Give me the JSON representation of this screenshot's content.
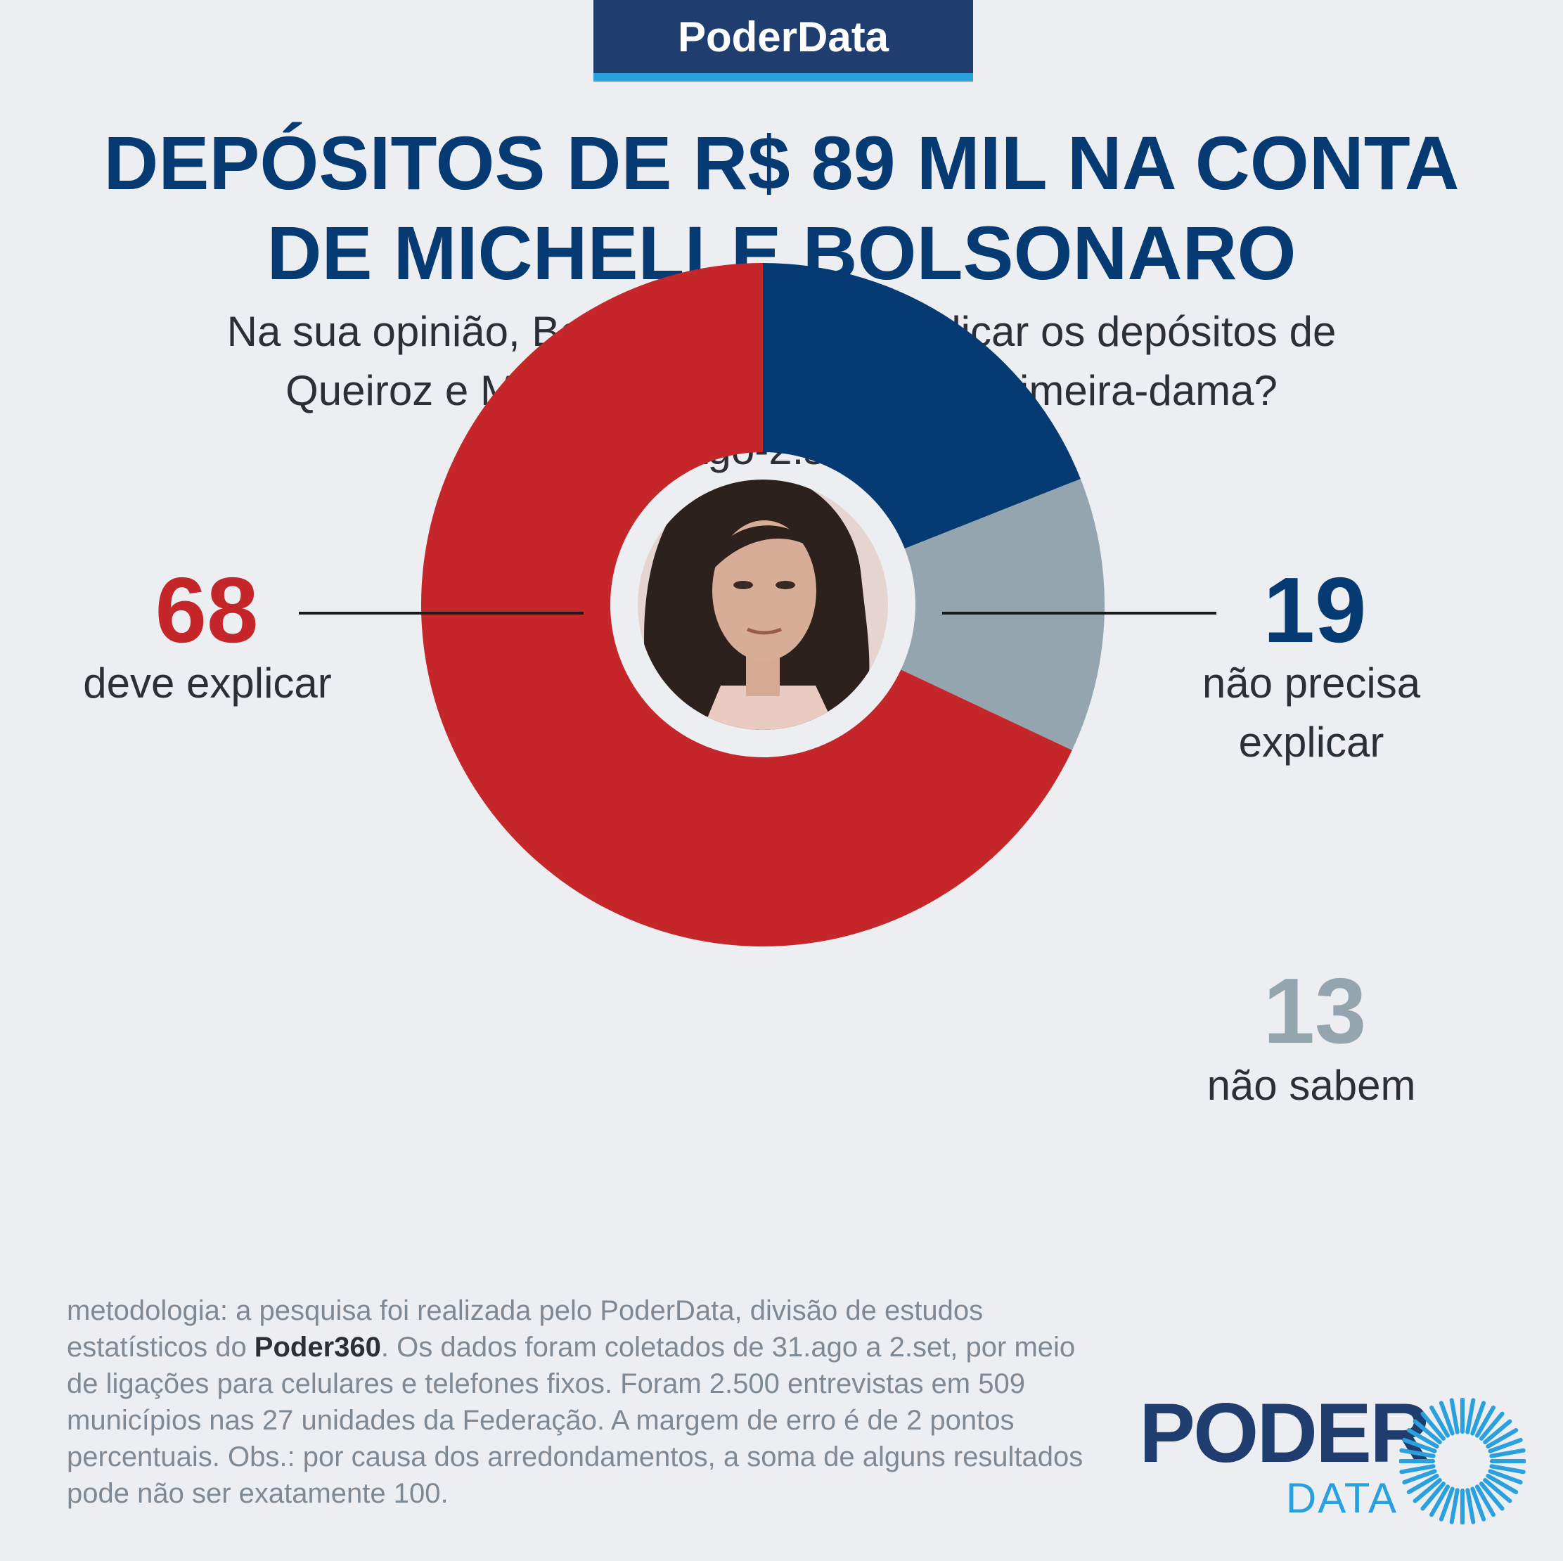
{
  "brand": "PoderData",
  "title_lines": [
    "DEPÓSITOS DE R$ 89 MIL NA CONTA",
    "DE MICHELLE BOLSONARO"
  ],
  "subtitle_lines": [
    "Na sua opinião, Bolsonaro deveria explicar os depósitos de",
    "Queiroz e Márcia Aguiar na conta da primeira-dama?",
    "31.ago-2.set (%)"
  ],
  "chart_data": {
    "type": "pie",
    "style": "donut",
    "unit": "%",
    "center_image": "photo-of-michelle-bolsonaro",
    "slices": [
      {
        "value": 19,
        "label_lines": [
          "não precisa",
          "explicar"
        ],
        "color": "#053b72"
      },
      {
        "value": 13,
        "label_lines": [
          "não sabem"
        ],
        "color": "#94a5af"
      },
      {
        "value": 68,
        "label_lines": [
          "deve explicar"
        ],
        "color": "#c4262a"
      }
    ]
  },
  "methodology": {
    "before": "metodologia: a pesquisa foi realizada pelo PoderData, divisão de estudos estatísticos do ",
    "bold": "Poder360",
    "after": ". Os dados foram coletados de 31.ago a 2.set, por meio de ligações para celulares e telefones fixos. Foram 2.500 entrevistas em 509 municípios nas 27 unidades da Federação. A margem de erro é de 2 pontos percentuais. Obs.: por causa dos arredondamentos, a soma de alguns resultados pode não ser exatamente 100."
  },
  "logo": {
    "word1": "PODER",
    "word2": "DATA"
  },
  "colors": {
    "navy": "#053b72",
    "red": "#c4262a",
    "gray": "#94a5af",
    "accent": "#2aa0dc",
    "background": "#eceef1"
  }
}
